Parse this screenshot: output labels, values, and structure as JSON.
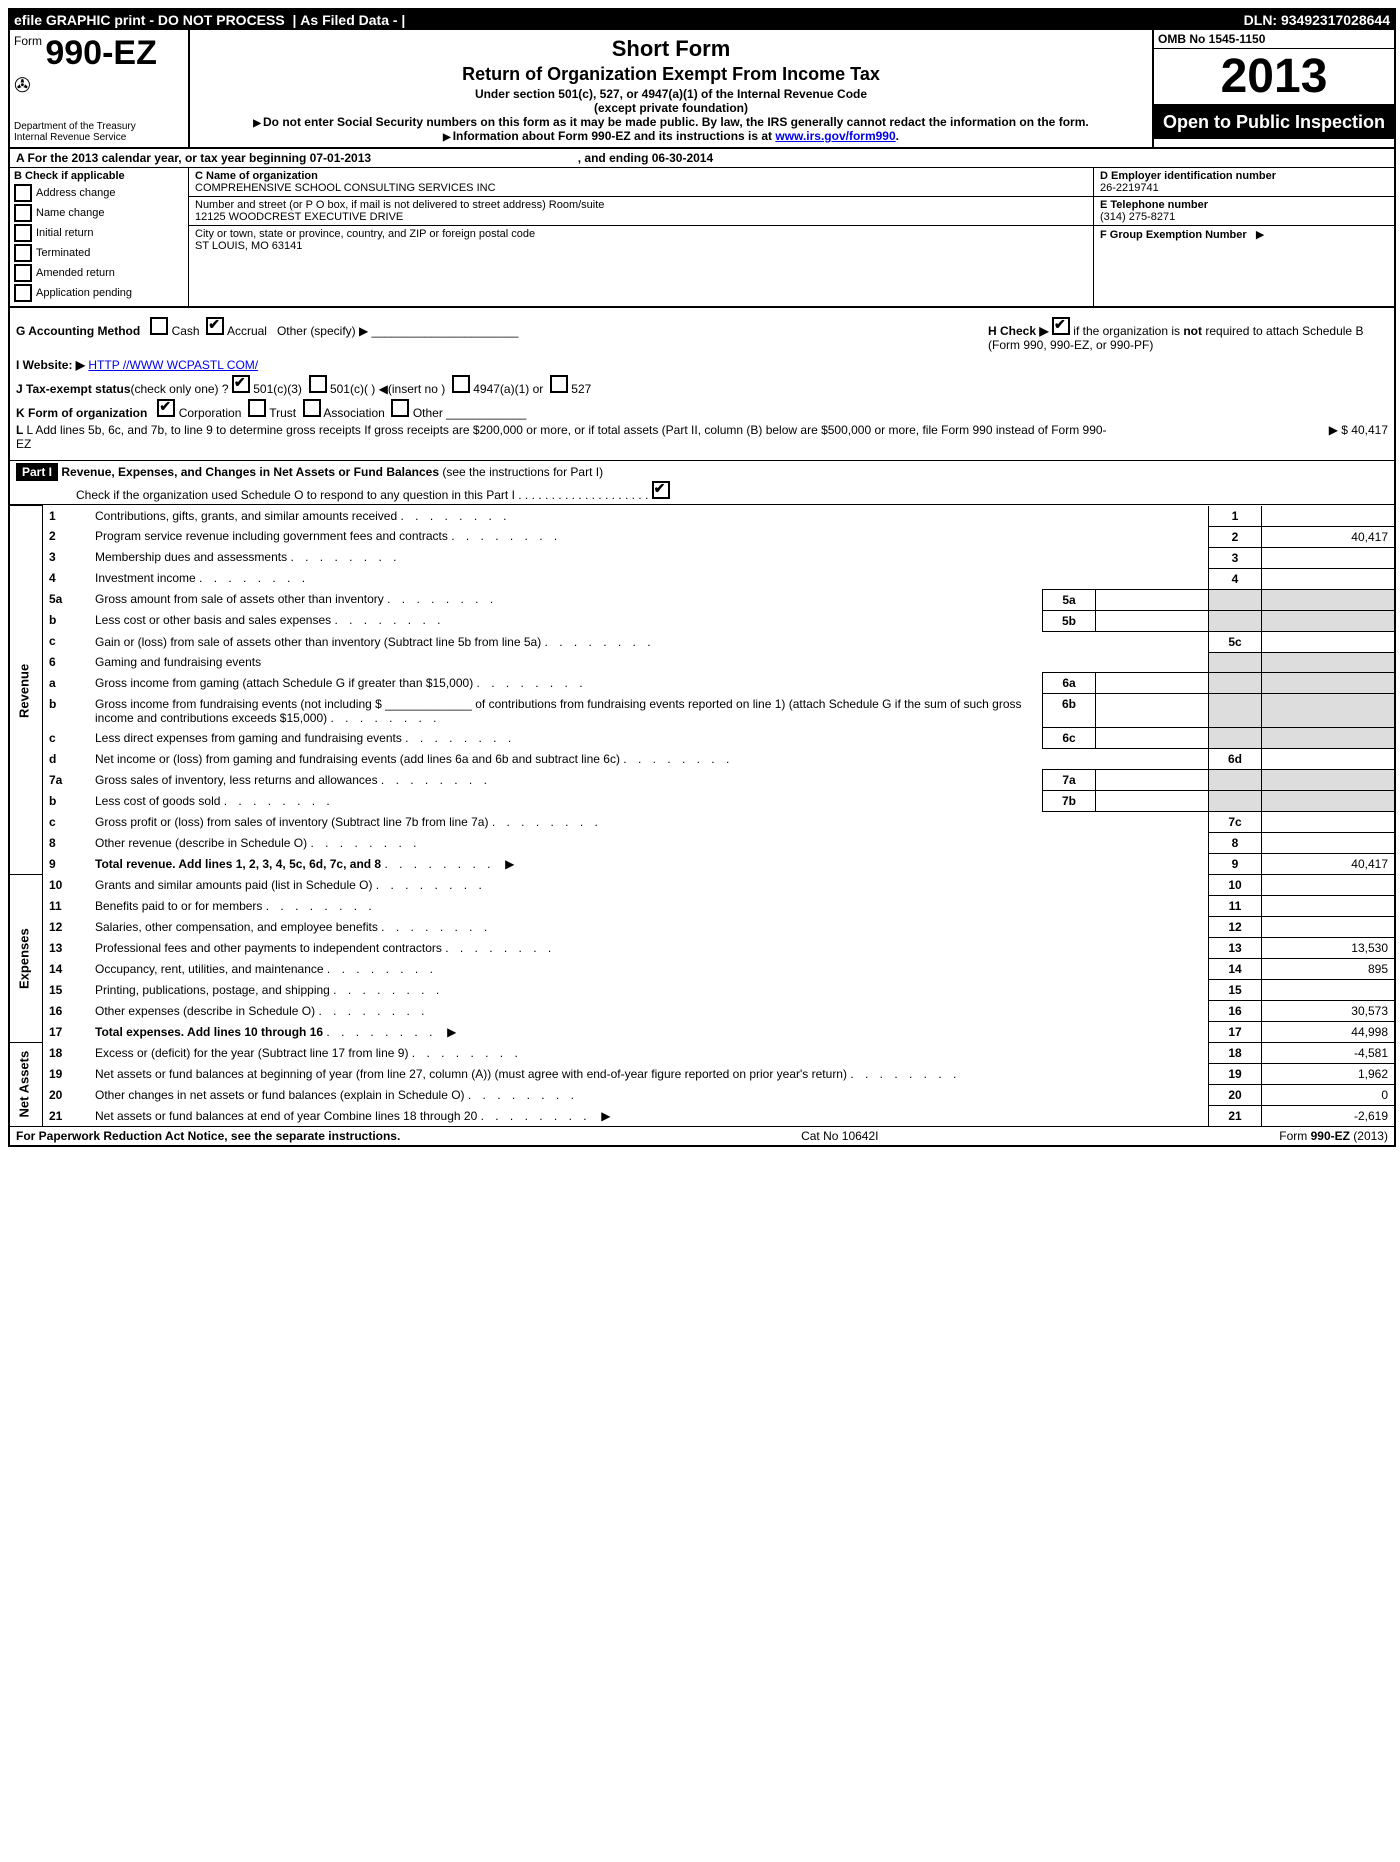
{
  "topbar": {
    "efile": "efile GRAPHIC print - DO NOT PROCESS",
    "asfiled": "As Filed Data -",
    "dln_label": "DLN:",
    "dln": "93492317028644"
  },
  "header": {
    "form_prefix": "Form",
    "form_num": "990-EZ",
    "dept1": "Department of the Treasury",
    "dept2": "Internal Revenue Service",
    "short": "Short Form",
    "title": "Return of Organization Exempt From Income Tax",
    "under": "Under section 501(c), 527, or 4947(a)(1) of the Internal Revenue Code",
    "except": "(except private foundation)",
    "ssn": "Do not enter Social Security numbers on this form as it may be made public. By law, the IRS generally cannot redact the information on the form.",
    "info_pre": "Information about Form 990-EZ and its instructions is at ",
    "info_url": "www.irs.gov/form990",
    "omb": "OMB No 1545-1150",
    "year": "2013",
    "open": "Open to Public Inspection"
  },
  "line_a": {
    "pre": "A  For the 2013 calendar year, or tax year beginning ",
    "begin": "07-01-2013",
    "mid": ", and ending ",
    "end": "06-30-2014"
  },
  "col_b": {
    "title": "B  Check if applicable",
    "items": [
      "Address change",
      "Name change",
      "Initial return",
      "Terminated",
      "Amended return",
      "Application pending"
    ]
  },
  "col_c": {
    "name_label": "C Name of organization",
    "name": "COMPREHENSIVE SCHOOL CONSULTING SERVICES INC",
    "street_label": "Number and street (or P  O  box, if mail is not delivered to street address) Room/suite",
    "street": "12125 WOODCREST EXECUTIVE DRIVE",
    "city_label": "City or town, state or province, country, and ZIP or foreign postal code",
    "city": "ST LOUIS, MO  63141"
  },
  "col_d": {
    "ein_label": "D Employer identification number",
    "ein": "26-2219741",
    "tel_label": "E Telephone number",
    "tel": "(314) 275-8271",
    "group_label": "F Group Exemption Number",
    "arrow": "▶"
  },
  "mid": {
    "g": "G Accounting Method",
    "g_cash": "Cash",
    "g_accrual": "Accrual",
    "g_other": "Other (specify) ▶",
    "h": "H  Check ▶",
    "h_text1": "if the organization is ",
    "h_not": "not",
    "h_text2": " required to attach Schedule B (Form 990, 990-EZ, or 990-PF)",
    "i": "I Website: ▶",
    "i_url": "HTTP //WWW WCPASTL COM/",
    "j": "J Tax-exempt status",
    "j_rest": "(check only one) ?",
    "j_opts": [
      "501(c)(3)",
      "501(c)(  ) ◀(insert no )",
      "4947(a)(1) or",
      "527"
    ],
    "k": "K Form of organization",
    "k_opts": [
      "Corporation",
      "Trust",
      "Association",
      "Other"
    ],
    "l": "L Add lines 5b, 6c, and 7b, to line 9 to determine gross receipts  If gross receipts are $200,000 or more, or if total assets (Part II, column (B) below are $500,000 or more, file Form 990 instead of Form 990-EZ",
    "l_amt": "▶ $ 40,417"
  },
  "part1": {
    "label": "Part I",
    "title": "Revenue, Expenses, and Changes in Net Assets or Fund Balances",
    "inst": "(see the instructions for Part I)",
    "check": "Check if the organization used Schedule O to respond to any question in this Part I  . . . . . . . . . . . . . . . . . . . ."
  },
  "sections": {
    "revenue": "Revenue",
    "expenses": "Expenses",
    "netassets": "Net Assets"
  },
  "rows": [
    {
      "n": "1",
      "d": "Contributions, gifts, grants, and similar amounts received",
      "box": "1",
      "v": ""
    },
    {
      "n": "2",
      "d": "Program service revenue including government fees and contracts",
      "box": "2",
      "v": "40,417"
    },
    {
      "n": "3",
      "d": "Membership dues and assessments",
      "box": "3",
      "v": ""
    },
    {
      "n": "4",
      "d": "Investment income",
      "box": "4",
      "v": ""
    },
    {
      "n": "5a",
      "d": "Gross amount from sale of assets other than inventory",
      "sub": "5a"
    },
    {
      "n": "b",
      "d": "Less  cost or other basis and sales expenses",
      "sub": "5b"
    },
    {
      "n": "c",
      "d": "Gain or (loss) from sale of assets other than inventory (Subtract line 5b from line 5a)",
      "box": "5c",
      "v": ""
    },
    {
      "n": "6",
      "d": "Gaming and fundraising events"
    },
    {
      "n": "a",
      "d": "Gross income from gaming (attach Schedule G if greater than $15,000)",
      "sub": "6a"
    },
    {
      "n": "b",
      "d": "Gross income from fundraising events (not including $ _____________ of contributions from fundraising events reported on line 1) (attach Schedule G if the sum of such gross income and contributions exceeds $15,000)",
      "sub": "6b"
    },
    {
      "n": "c",
      "d": "Less  direct expenses from gaming and fundraising events",
      "sub": "6c"
    },
    {
      "n": "d",
      "d": "Net income or (loss) from gaming and fundraising events (add lines 6a and 6b and subtract line 6c)",
      "box": "6d",
      "v": ""
    },
    {
      "n": "7a",
      "d": "Gross sales of inventory, less returns and allowances",
      "sub": "7a"
    },
    {
      "n": "b",
      "d": "Less  cost of goods sold",
      "sub": "7b"
    },
    {
      "n": "c",
      "d": "Gross profit or (loss) from sales of inventory (Subtract line 7b from line 7a)",
      "box": "7c",
      "v": ""
    },
    {
      "n": "8",
      "d": "Other revenue (describe in Schedule O)",
      "box": "8",
      "v": ""
    },
    {
      "n": "9",
      "d": "Total revenue. Add lines 1, 2, 3, 4, 5c, 6d, 7c, and 8",
      "box": "9",
      "v": "40,417",
      "bold": true,
      "arrow": true
    },
    {
      "n": "10",
      "d": "Grants and similar amounts paid (list in Schedule O)",
      "box": "10",
      "v": ""
    },
    {
      "n": "11",
      "d": "Benefits paid to or for members",
      "box": "11",
      "v": ""
    },
    {
      "n": "12",
      "d": "Salaries, other compensation, and employee benefits",
      "box": "12",
      "v": ""
    },
    {
      "n": "13",
      "d": "Professional fees and other payments to independent contractors",
      "box": "13",
      "v": "13,530"
    },
    {
      "n": "14",
      "d": "Occupancy, rent, utilities, and maintenance",
      "box": "14",
      "v": "895"
    },
    {
      "n": "15",
      "d": "Printing, publications, postage, and shipping",
      "box": "15",
      "v": ""
    },
    {
      "n": "16",
      "d": "Other expenses (describe in Schedule O)",
      "box": "16",
      "v": "30,573"
    },
    {
      "n": "17",
      "d": "Total expenses. Add lines 10 through 16",
      "box": "17",
      "v": "44,998",
      "bold": true,
      "arrow": true
    },
    {
      "n": "18",
      "d": "Excess or (deficit) for the year (Subtract line 17 from line 9)",
      "box": "18",
      "v": "-4,581"
    },
    {
      "n": "19",
      "d": "Net assets or fund balances at beginning of year (from line 27, column (A)) (must agree with end-of-year figure reported on prior year's return)",
      "box": "19",
      "v": "1,962"
    },
    {
      "n": "20",
      "d": "Other changes in net assets or fund balances (explain in Schedule O)",
      "box": "20",
      "v": "0"
    },
    {
      "n": "21",
      "d": "Net assets or fund balances at end of year  Combine lines 18 through 20",
      "box": "21",
      "v": "-2,619",
      "arrow": true
    }
  ],
  "footer": {
    "left": "For Paperwork Reduction Act Notice, see the separate instructions.",
    "mid": "Cat No  10642I",
    "right": "Form 990-EZ (2013)"
  }
}
